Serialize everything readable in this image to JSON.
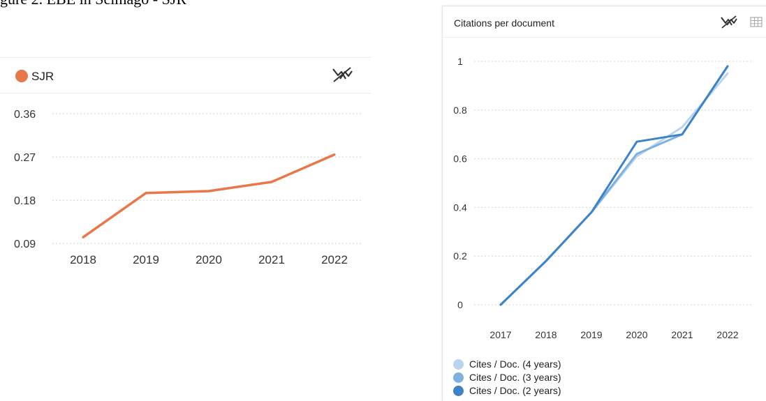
{
  "caption": "gure 2. EBE in Scimago - SJR",
  "sjr_card": {
    "legend_label": "SJR",
    "legend_color": "#e8784a",
    "icon": "trend-chart-icon"
  },
  "cpd_card": {
    "title": "Citations per document",
    "icons": [
      "trend-chart-icon",
      "table-icon"
    ]
  },
  "chart_data": [
    {
      "type": "line",
      "title": "",
      "xlabel": "",
      "ylabel": "",
      "x": [
        "2018",
        "2019",
        "2020",
        "2021",
        "2022"
      ],
      "yticks": [
        "0.09",
        "0.18",
        "0.27",
        "0.36"
      ],
      "ylim": [
        0.054,
        0.405
      ],
      "grid": true,
      "series": [
        {
          "name": "SJR",
          "color": "#e8784a",
          "values": [
            0.103,
            0.195,
            0.199,
            0.218,
            0.275
          ]
        }
      ]
    },
    {
      "type": "line",
      "title": "Citations per document",
      "xlabel": "",
      "ylabel": "",
      "x": [
        "2017",
        "2018",
        "2019",
        "2020",
        "2021",
        "2022"
      ],
      "yticks": [
        "0",
        "0.2",
        "0.4",
        "0.6",
        "0.8",
        "1"
      ],
      "ylim": [
        0,
        1
      ],
      "grid": true,
      "legend": "bottom-left",
      "series": [
        {
          "name": "Cites / Doc. (4 years)",
          "color": "#b9d5ee",
          "values": [
            0,
            0.18,
            0.38,
            0.61,
            0.73,
            0.95
          ]
        },
        {
          "name": "Cites / Doc. (3 years)",
          "color": "#7fb1e0",
          "values": [
            0,
            0.18,
            0.38,
            0.62,
            0.7,
            0.98
          ]
        },
        {
          "name": "Cites / Doc. (2 years)",
          "color": "#3d83c6",
          "values": [
            0,
            0.18,
            0.38,
            0.67,
            0.7,
            0.98
          ]
        }
      ]
    }
  ]
}
